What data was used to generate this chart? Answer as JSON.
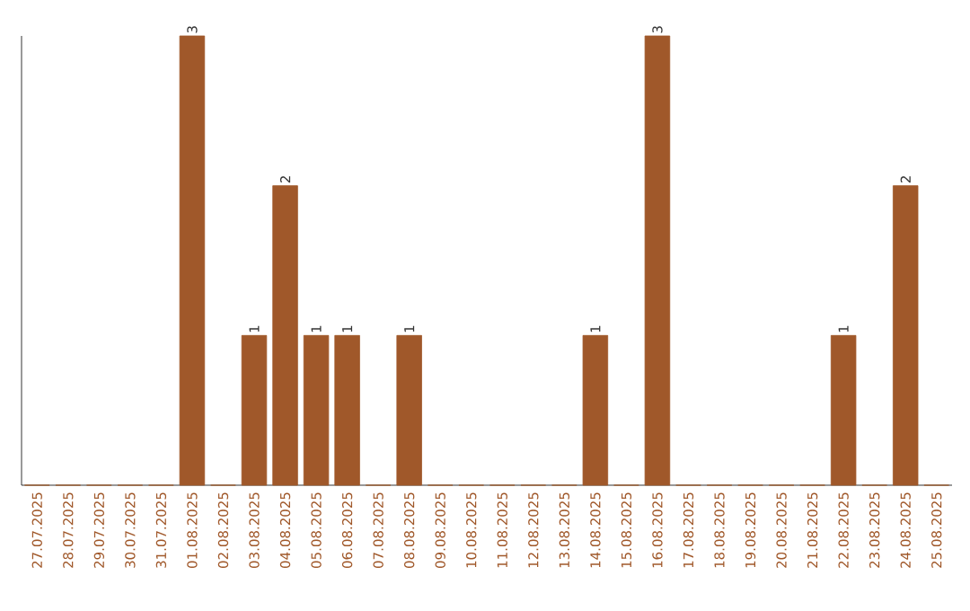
{
  "chart_data": {
    "type": "bar",
    "color": "#a0582a",
    "categories": [
      "27.07.2025",
      "28.07.2025",
      "29.07.2025",
      "30.07.2025",
      "31.07.2025",
      "01.08.2025",
      "02.08.2025",
      "03.08.2025",
      "04.08.2025",
      "05.08.2025",
      "06.08.2025",
      "07.08.2025",
      "08.08.2025",
      "09.08.2025",
      "10.08.2025",
      "11.08.2025",
      "12.08.2025",
      "13.08.2025",
      "14.08.2025",
      "15.08.2025",
      "16.08.2025",
      "17.08.2025",
      "18.08.2025",
      "19.08.2025",
      "20.08.2025",
      "21.08.2025",
      "22.08.2025",
      "23.08.2025",
      "24.08.2025",
      "25.08.2025"
    ],
    "values": [
      0,
      0,
      0,
      0,
      0,
      3,
      0,
      1,
      2,
      1,
      1,
      0,
      1,
      0,
      0,
      0,
      0,
      0,
      1,
      0,
      3,
      0,
      0,
      0,
      0,
      0,
      1,
      0,
      2,
      0
    ],
    "value_labels": [
      null,
      null,
      null,
      null,
      null,
      "3",
      null,
      "1",
      "2",
      "1",
      "1",
      null,
      "1",
      null,
      null,
      null,
      null,
      null,
      "1",
      null,
      "3",
      null,
      null,
      null,
      null,
      null,
      "1",
      null,
      "2",
      null
    ],
    "tick_labels": "x",
    "grid": false
  }
}
